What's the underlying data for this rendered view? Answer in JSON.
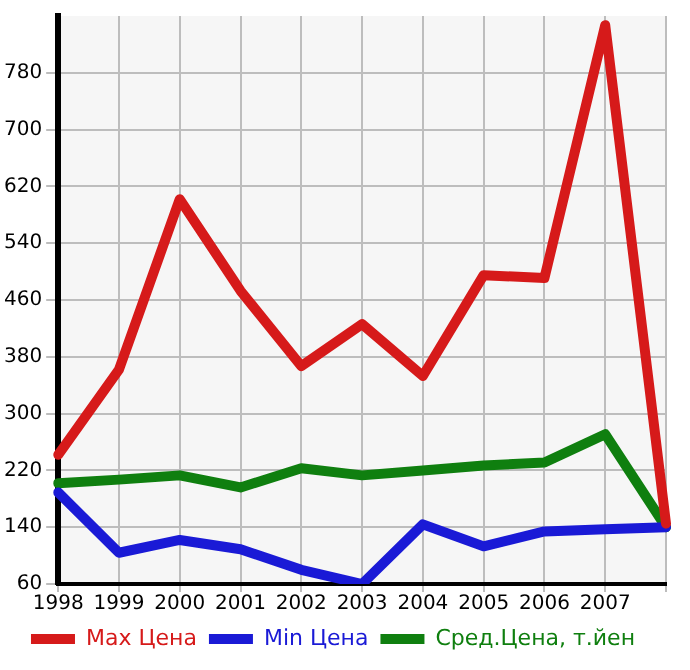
{
  "chart_data": {
    "type": "line",
    "categories": [
      "1998",
      "1999",
      "2000",
      "2001",
      "2002",
      "2003",
      "2004",
      "2005",
      "2006",
      "2007",
      null
    ],
    "series": [
      {
        "name": "Max Цена",
        "color": "#d61a1a",
        "values": [
          242,
          362,
          602,
          473,
          367,
          426,
          353,
          495,
          491,
          847,
          145
        ]
      },
      {
        "name": "Min Цена",
        "color": "#1a1ad6",
        "values": [
          189,
          104,
          122,
          109,
          80,
          60,
          144,
          113,
          134,
          137,
          140
        ]
      },
      {
        "name": "Сред.Цена, т.йен",
        "color": "#0f7f0f",
        "values": [
          202,
          207,
          213,
          196,
          223,
          213,
          220,
          227,
          231,
          271,
          140
        ]
      }
    ],
    "ylim": [
      60,
      860
    ],
    "yticks": [
      60,
      140,
      220,
      300,
      380,
      460,
      540,
      620,
      700,
      780
    ],
    "grid": true,
    "legend": "bottom",
    "marker": "none",
    "line_style": "solid"
  }
}
